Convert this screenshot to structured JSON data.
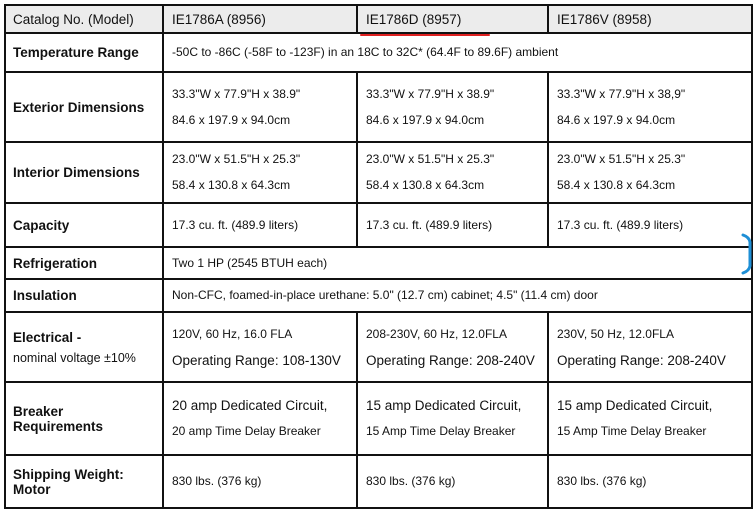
{
  "table": {
    "header": {
      "label": "Catalog No. (Model)",
      "models": [
        "IE1786A (8956)",
        "IE1786D (8957)",
        "IE1786V (8958)"
      ]
    },
    "rows": [
      {
        "label": "Temperature Range",
        "span": [
          "-50C to -86C (-58F to -123F) in an 18C to 32C* (64.4F to 89.6F) ambient"
        ]
      },
      {
        "label": "Exterior Dimensions",
        "cells": [
          [
            "33.3\"W x 77.9\"H x 38.9\"",
            "84.6 x 197.9 x 94.0cm"
          ],
          [
            "33.3\"W x 77.9\"H x 38.9\"",
            "84.6 x 197.9 x 94.0cm"
          ],
          [
            "33.3\"W x 77.9\"H x 38,9\"",
            "84.6 x 197.9 x 94.0cm"
          ]
        ]
      },
      {
        "label": "Interior Dimensions",
        "cells": [
          [
            "23.0\"W x 51.5\"H x 25.3\"",
            "58.4 x 130.8 x 64.3cm"
          ],
          [
            "23.0\"W x 51.5\"H x 25.3\"",
            "58.4 x 130.8 x 64.3cm"
          ],
          [
            "23.0\"W x 51.5\"H x 25.3\"",
            "58.4 x 130.8 x 64.3cm"
          ]
        ]
      },
      {
        "label": "Capacity",
        "cells": [
          [
            "17.3 cu. ft. (489.9 liters)"
          ],
          [
            "17.3 cu. ft. (489.9 liters)"
          ],
          [
            "17.3 cu. ft. (489.9 liters)"
          ]
        ]
      },
      {
        "label": "Refrigeration",
        "span": [
          "Two 1 HP (2545 BTUH each)"
        ]
      },
      {
        "label": "Insulation",
        "span": [
          "Non-CFC, foamed-in-place urethane: 5.0\" (12.7 cm) cabinet; 4.5\" (11.4 cm) door"
        ]
      },
      {
        "label": "Electrical -",
        "sublabel": "nominal voltage ±10%",
        "cells": [
          [
            "120V, 60 Hz, 16.0 FLA",
            "Operating Range: 108-130V"
          ],
          [
            "208-230V, 60 Hz, 12.0FLA",
            "Operating Range: 208-240V"
          ],
          [
            "230V, 50 Hz, 12.0FLA",
            "Operating Range: 208-240V"
          ]
        ]
      },
      {
        "label": "Breaker Requirements",
        "cells": [
          [
            "20 amp Dedicated Circuit,",
            "20 amp Time Delay Breaker"
          ],
          [
            "15 amp Dedicated Circuit,",
            "15 Amp Time Delay Breaker"
          ],
          [
            "15 amp Dedicated Circuit,",
            "15 Amp Time Delay Breaker"
          ]
        ]
      },
      {
        "label": "Shipping Weight: Motor",
        "cells": [
          [
            "830 lbs. (376 kg)"
          ],
          [
            "830 lbs. (376 kg)"
          ],
          [
            "830 lbs. (376 kg)"
          ]
        ]
      }
    ]
  },
  "colors": {
    "header_bg": "#ececec",
    "annotation_underline": "#e02020",
    "annotation_bracket": "#1e8fd6"
  }
}
